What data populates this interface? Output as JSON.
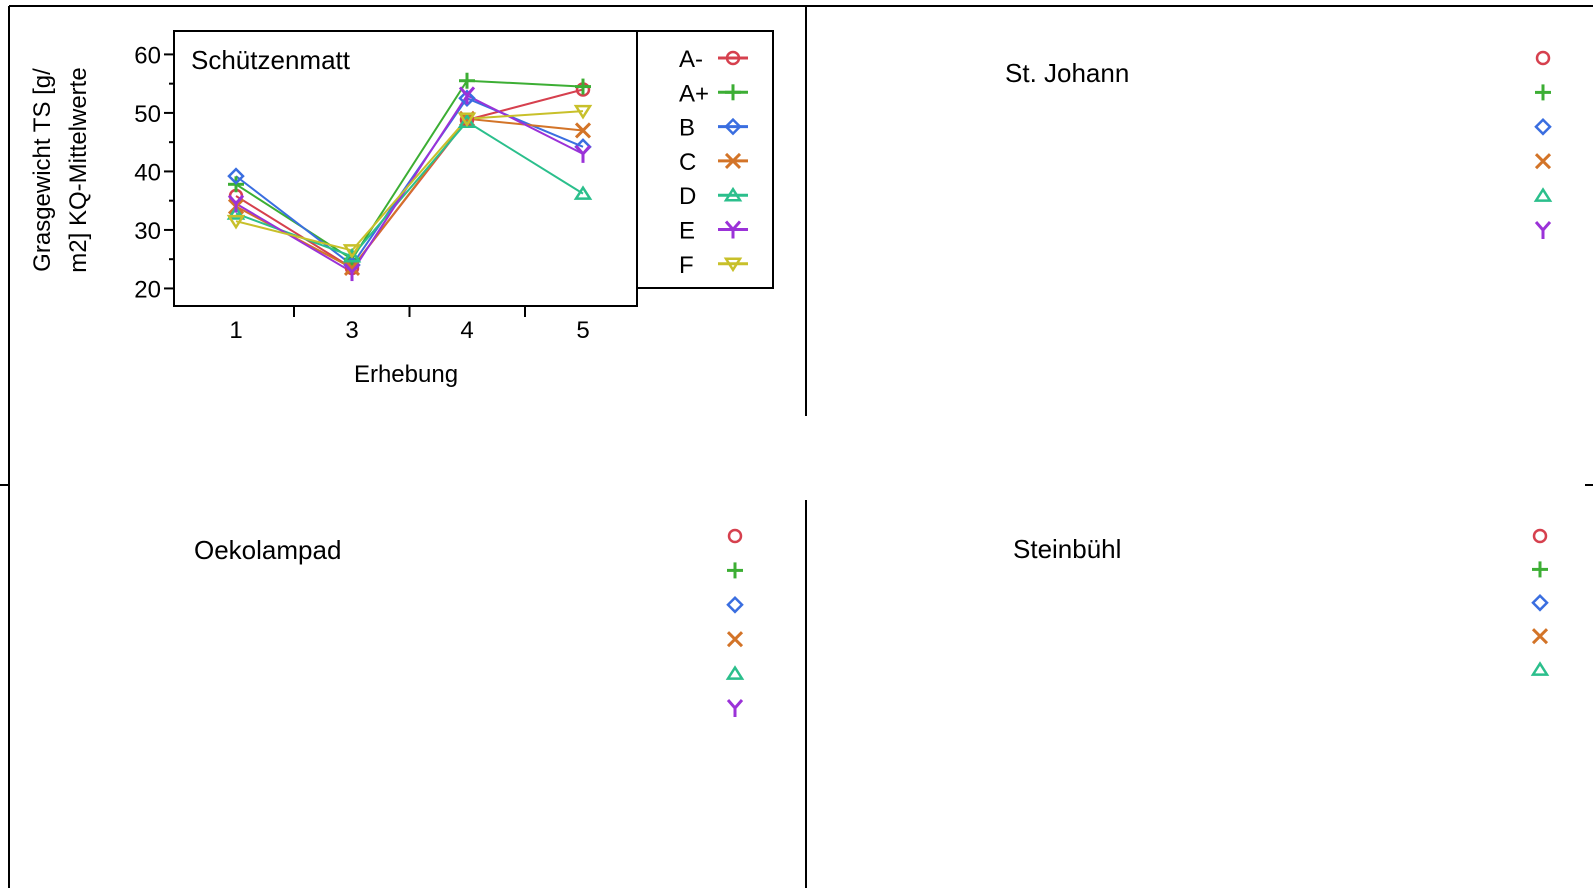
{
  "chart_data": [
    {
      "type": "line",
      "title": "Schützenmatt",
      "xlabel": "Erhebung",
      "ylabel": "Grasgewicht TS [g/ m2] KQ-Mittelwerte",
      "ylabel_lines": [
        "Grasgewicht TS [g/",
        "m2] KQ-Mittelwerte"
      ],
      "categories": [
        "1",
        "3",
        "4",
        "5"
      ],
      "ylim": [
        17,
        64
      ],
      "yticks": [
        "20",
        "30",
        "40",
        "50",
        "60"
      ],
      "legend_position": "right",
      "series": [
        {
          "name": "A-",
          "marker": "circle",
          "color": "#d6404e",
          "values": [
            35.8,
            23.5,
            48.8,
            54.0
          ]
        },
        {
          "name": "A+",
          "marker": "plus",
          "color": "#3cae34",
          "values": [
            37.8,
            25.0,
            55.5,
            54.5
          ]
        },
        {
          "name": "B",
          "marker": "diamond",
          "color": "#3a6ee0",
          "values": [
            39.2,
            24.0,
            52.5,
            44.2
          ]
        },
        {
          "name": "C",
          "marker": "x",
          "color": "#d37428",
          "values": [
            34.0,
            23.5,
            49.0,
            47.0
          ]
        },
        {
          "name": "D",
          "marker": "triangle",
          "color": "#2bbf8c",
          "values": [
            32.8,
            25.5,
            48.5,
            36.2
          ]
        },
        {
          "name": "E",
          "marker": "y",
          "color": "#9b32d8",
          "values": [
            34.5,
            22.8,
            53.0,
            43.0
          ]
        },
        {
          "name": "F",
          "marker": "triangle-down",
          "color": "#c8c02a",
          "values": [
            31.5,
            26.5,
            49.0,
            50.3
          ]
        }
      ]
    },
    {
      "type": "line",
      "title": "St. Johann",
      "legend_markers": [
        {
          "marker": "circle",
          "color": "#d6404e"
        },
        {
          "marker": "plus",
          "color": "#3cae34"
        },
        {
          "marker": "diamond",
          "color": "#3a6ee0"
        },
        {
          "marker": "x",
          "color": "#d37428"
        },
        {
          "marker": "triangle",
          "color": "#2bbf8c"
        },
        {
          "marker": "y",
          "color": "#9b32d8"
        }
      ]
    },
    {
      "type": "line",
      "title": "Oekolampad",
      "legend_markers": [
        {
          "marker": "circle",
          "color": "#d6404e"
        },
        {
          "marker": "plus",
          "color": "#3cae34"
        },
        {
          "marker": "diamond",
          "color": "#3a6ee0"
        },
        {
          "marker": "x",
          "color": "#d37428"
        },
        {
          "marker": "triangle",
          "color": "#2bbf8c"
        },
        {
          "marker": "y",
          "color": "#9b32d8"
        }
      ]
    },
    {
      "type": "line",
      "title": "Steinbühl",
      "legend_markers": [
        {
          "marker": "circle",
          "color": "#d6404e"
        },
        {
          "marker": "plus",
          "color": "#3cae34"
        },
        {
          "marker": "diamond",
          "color": "#3a6ee0"
        },
        {
          "marker": "x",
          "color": "#d37428"
        },
        {
          "marker": "triangle",
          "color": "#2bbf8c"
        }
      ]
    }
  ]
}
